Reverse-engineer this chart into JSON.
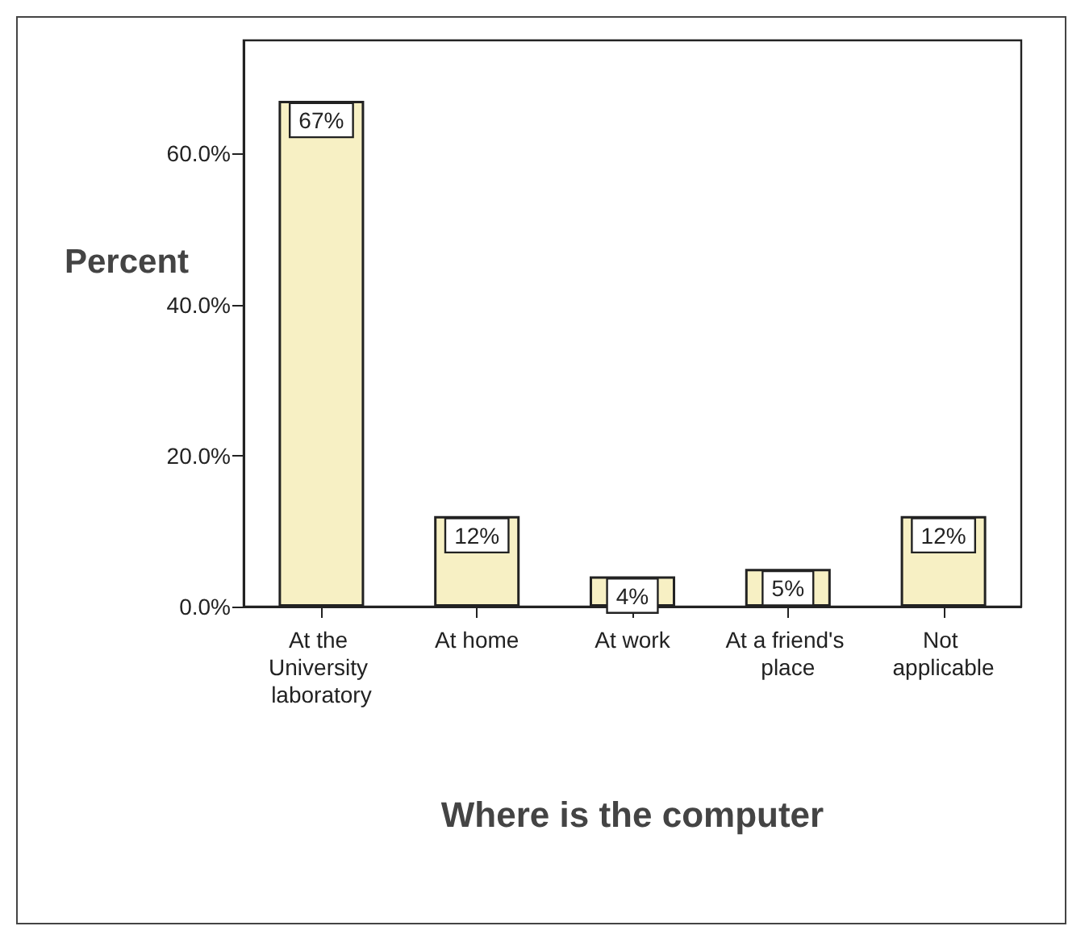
{
  "chart_data": {
    "type": "bar",
    "xlabel": "Where is the computer",
    "ylabel": "Percent",
    "categories": [
      "At the University laboratory",
      "At home",
      "At work",
      "At a friend's place",
      "Not applicable"
    ],
    "values": [
      67,
      12,
      4,
      5,
      12
    ],
    "value_labels": [
      "67%",
      "12%",
      "4%",
      "5%",
      "12%"
    ],
    "color": "#f7f0c4",
    "ylim": [
      0,
      75
    ],
    "yticks": [
      {
        "value": 0,
        "label": "0.0%"
      },
      {
        "value": 20,
        "label": "20.0%"
      },
      {
        "value": 40,
        "label": "40.0%"
      },
      {
        "value": 60,
        "label": "60.0%"
      }
    ],
    "grid": false
  }
}
